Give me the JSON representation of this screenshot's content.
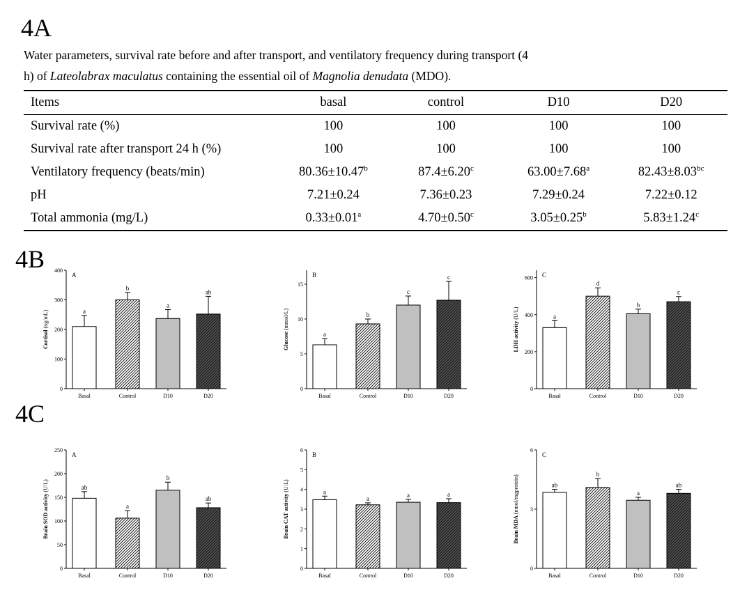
{
  "sections": {
    "a": "4A",
    "b": "4B",
    "c": "4C"
  },
  "caption": {
    "line1": "Water parameters, survival rate before and after transport, and ventilatory frequency during transport (4",
    "line2_pre": "h) of ",
    "species": "Lateolabrax maculatus",
    "line2_mid": " containing the essential oil of ",
    "plant": "Magnolia denudata",
    "line2_post": " (MDO)."
  },
  "table": {
    "headers": [
      "Items",
      "basal",
      "control",
      "D10",
      "D20"
    ],
    "rows": [
      {
        "item": "Survival rate (%)",
        "cells": [
          {
            "v": "100",
            "s": ""
          },
          {
            "v": "100",
            "s": ""
          },
          {
            "v": "100",
            "s": ""
          },
          {
            "v": "100",
            "s": ""
          }
        ]
      },
      {
        "item": "Survival rate after transport 24 h (%)",
        "cells": [
          {
            "v": "100",
            "s": ""
          },
          {
            "v": "100",
            "s": ""
          },
          {
            "v": "100",
            "s": ""
          },
          {
            "v": "100",
            "s": ""
          }
        ]
      },
      {
        "item": "Ventilatory frequency (beats/min)",
        "cells": [
          {
            "v": "80.36±10.47",
            "s": "b"
          },
          {
            "v": "87.4±6.20",
            "s": "c"
          },
          {
            "v": "63.00±7.68",
            "s": "a"
          },
          {
            "v": "82.43±8.03",
            "s": "bc"
          }
        ]
      },
      {
        "item": "pH",
        "cells": [
          {
            "v": "7.21±0.24",
            "s": ""
          },
          {
            "v": "7.36±0.23",
            "s": ""
          },
          {
            "v": "7.29±0.24",
            "s": ""
          },
          {
            "v": "7.22±0.12",
            "s": ""
          }
        ]
      },
      {
        "item": "Total ammonia (mg/L)",
        "cells": [
          {
            "v": "0.33±0.01",
            "s": "a"
          },
          {
            "v": "4.70±0.50",
            "s": "c"
          },
          {
            "v": "3.05±0.25",
            "s": "b"
          },
          {
            "v": "5.83±1.24",
            "s": "c"
          }
        ]
      }
    ]
  },
  "bar_fills": [
    "#ffffff",
    "#ffffff",
    "#c0c0c0",
    "#555555"
  ],
  "bar_hatch": [
    false,
    true,
    false,
    true
  ],
  "chart_data": [
    {
      "type": "bar",
      "panel": "A",
      "ylabel_bold": "Cortisol",
      "ylabel_unit": " (ng/mL)",
      "categories": [
        "Basal",
        "Control",
        "D10",
        "D20"
      ],
      "values": [
        210,
        300,
        237,
        252
      ],
      "errors": [
        37,
        25,
        30,
        60
      ],
      "letters": [
        "a",
        "b",
        "a",
        "ab"
      ],
      "ylim": [
        0,
        400
      ],
      "yticks": [
        0,
        100,
        200,
        300,
        400
      ]
    },
    {
      "type": "bar",
      "panel": "B",
      "ylabel_bold": "Glucose",
      "ylabel_unit": " (mmol/L)",
      "categories": [
        "Basal",
        "Control",
        "D10",
        "D20"
      ],
      "values": [
        6.3,
        9.3,
        12.0,
        12.7
      ],
      "errors": [
        0.9,
        0.7,
        1.3,
        2.7
      ],
      "letters": [
        "a",
        "b",
        "c",
        "c"
      ],
      "ylim": [
        0,
        17
      ],
      "yticks": [
        0,
        5,
        10,
        15
      ]
    },
    {
      "type": "bar",
      "panel": "C",
      "ylabel_bold": "LDH activity",
      "ylabel_unit": " (U/L)",
      "categories": [
        "Basal",
        "Control",
        "D10",
        "D20"
      ],
      "values": [
        330,
        500,
        405,
        470
      ],
      "errors": [
        38,
        45,
        25,
        28
      ],
      "letters": [
        "a",
        "d",
        "b",
        "c"
      ],
      "ylim": [
        0,
        640
      ],
      "yticks": [
        0,
        200,
        400,
        600
      ]
    },
    {
      "type": "bar",
      "panel": "A",
      "ylabel_bold": "Brain SOD activity",
      "ylabel_unit": " (U/L)",
      "categories": [
        "Basal",
        "Control",
        "D10",
        "D20"
      ],
      "values": [
        148,
        106,
        165,
        128
      ],
      "errors": [
        14,
        16,
        17,
        10
      ],
      "letters": [
        "ab",
        "a",
        "b",
        "ab"
      ],
      "ylim": [
        0,
        250
      ],
      "yticks": [
        0,
        50,
        100,
        150,
        200,
        250
      ]
    },
    {
      "type": "bar",
      "panel": "B",
      "ylabel_bold": "Brain CAT activity",
      "ylabel_unit": " (U/L)",
      "categories": [
        "Basal",
        "Control",
        "D10",
        "D20"
      ],
      "values": [
        3.48,
        3.22,
        3.35,
        3.33
      ],
      "errors": [
        0.18,
        0.1,
        0.15,
        0.2
      ],
      "letters": [
        "a",
        "a",
        "a",
        "a"
      ],
      "ylim": [
        0,
        6
      ],
      "yticks": [
        0,
        1,
        2,
        3,
        4,
        5,
        6
      ]
    },
    {
      "type": "bar",
      "panel": "C",
      "ylabel_bold": "Brain MDA",
      "ylabel_unit": " (nmol/mgprotein)",
      "categories": [
        "Basal",
        "Control",
        "D10",
        "D20"
      ],
      "values": [
        3.85,
        4.1,
        3.45,
        3.8
      ],
      "errors": [
        0.15,
        0.45,
        0.15,
        0.2
      ],
      "letters": [
        "ab",
        "b",
        "a",
        "ab"
      ],
      "ylim": [
        0,
        6
      ],
      "yticks": [
        0,
        3,
        6
      ]
    }
  ]
}
